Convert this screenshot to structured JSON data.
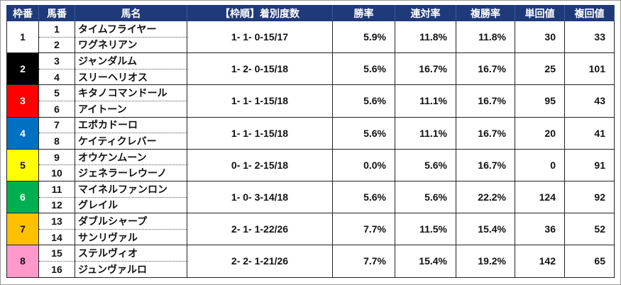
{
  "headers": [
    "枠番",
    "馬番",
    "馬名",
    "【枠順】着別度数",
    "勝率",
    "連対率",
    "複勝率",
    "単回値",
    "複回値"
  ],
  "colors": {
    "header_bg": "#1f3a78",
    "header_text": "#ffffff",
    "waku": [
      "#ffffff",
      "#000000",
      "#ff0000",
      "#0070c0",
      "#ffff00",
      "#00b050",
      "#ffc000",
      "#ff99cc"
    ]
  },
  "rows": [
    {
      "waku": "1",
      "waku_bg": "#ffffff",
      "waku_fg": "#111111",
      "horses": [
        {
          "no": "1",
          "name": "タイムフライヤー"
        },
        {
          "no": "2",
          "name": "ワグネリアン"
        }
      ],
      "record": "1- 1- 0-15/17",
      "win": "5.9%",
      "rentai": "11.8%",
      "fukusho": "11.8%",
      "tan": "30",
      "fuku": "33"
    },
    {
      "waku": "2",
      "waku_bg": "#000000",
      "waku_fg": "#ffffff",
      "horses": [
        {
          "no": "3",
          "name": "ジャンダルム"
        },
        {
          "no": "4",
          "name": "スリーヘリオス"
        }
      ],
      "record": "1- 2- 0-15/18",
      "win": "5.6%",
      "rentai": "16.7%",
      "fukusho": "16.7%",
      "tan": "25",
      "fuku": "101"
    },
    {
      "waku": "3",
      "waku_bg": "#ff0000",
      "waku_fg": "#ffffff",
      "horses": [
        {
          "no": "5",
          "name": "キタノコマンドール"
        },
        {
          "no": "6",
          "name": "アイトーン"
        }
      ],
      "record": "1- 1- 1-15/18",
      "win": "5.6%",
      "rentai": "11.1%",
      "fukusho": "16.7%",
      "tan": "95",
      "fuku": "43"
    },
    {
      "waku": "4",
      "waku_bg": "#0070c0",
      "waku_fg": "#ffffff",
      "horses": [
        {
          "no": "7",
          "name": "エポカドーロ"
        },
        {
          "no": "8",
          "name": "ケイティクレバー"
        }
      ],
      "record": "1- 1- 1-15/18",
      "win": "5.6%",
      "rentai": "11.1%",
      "fukusho": "16.7%",
      "tan": "20",
      "fuku": "41"
    },
    {
      "waku": "5",
      "waku_bg": "#ffff00",
      "waku_fg": "#111111",
      "horses": [
        {
          "no": "9",
          "name": "オウケンムーン"
        },
        {
          "no": "10",
          "name": "ジェネラーレウーノ"
        }
      ],
      "record": "0- 1- 2-15/18",
      "win": "0.0%",
      "rentai": "5.6%",
      "fukusho": "16.7%",
      "tan": "0",
      "fuku": "91"
    },
    {
      "waku": "6",
      "waku_bg": "#00b050",
      "waku_fg": "#ffffff",
      "horses": [
        {
          "no": "11",
          "name": "マイネルファンロン"
        },
        {
          "no": "12",
          "name": "グレイル"
        }
      ],
      "record": "1- 0- 3-14/18",
      "win": "5.6%",
      "rentai": "5.6%",
      "fukusho": "22.2%",
      "tan": "124",
      "fuku": "92"
    },
    {
      "waku": "7",
      "waku_bg": "#ffc000",
      "waku_fg": "#111111",
      "horses": [
        {
          "no": "13",
          "name": "ダブルシャープ"
        },
        {
          "no": "14",
          "name": "サンリヴァル"
        }
      ],
      "record": "2- 1- 1-22/26",
      "win": "7.7%",
      "rentai": "11.5%",
      "fukusho": "15.4%",
      "tan": "36",
      "fuku": "52"
    },
    {
      "waku": "8",
      "waku_bg": "#ff99cc",
      "waku_fg": "#111111",
      "horses": [
        {
          "no": "15",
          "name": "ステルヴィオ"
        },
        {
          "no": "16",
          "name": "ジュンヴァルロ"
        }
      ],
      "record": "2- 2- 1-21/26",
      "win": "7.7%",
      "rentai": "15.4%",
      "fukusho": "19.2%",
      "tan": "142",
      "fuku": "65"
    }
  ]
}
